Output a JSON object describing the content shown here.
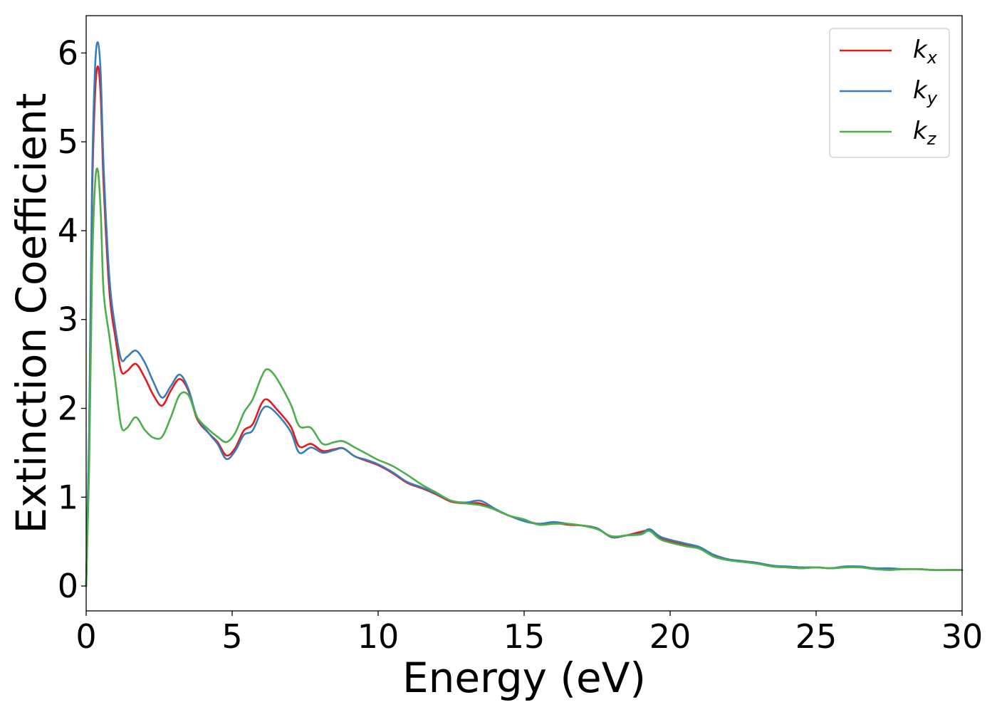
{
  "chart_data": {
    "type": "line",
    "title": "",
    "xlabel": "Energy (eV)",
    "ylabel": "Extinction Coefficient",
    "xlim": [
      0,
      30
    ],
    "ylim": [
      -0.28,
      6.42
    ],
    "xticks": [
      0,
      5,
      10,
      15,
      20,
      25,
      30
    ],
    "yticks": [
      0,
      1,
      2,
      3,
      4,
      5,
      6
    ],
    "grid": false,
    "legend_position": "top-right",
    "series": [
      {
        "name": "kx",
        "legend_base": "k",
        "legend_sub": "x",
        "color": "#e41a1c",
        "x": [
          0,
          0.1,
          0.2,
          0.3,
          0.4,
          0.5,
          0.6,
          0.8,
          1.0,
          1.2,
          1.4,
          1.7,
          2.0,
          2.3,
          2.6,
          2.9,
          3.2,
          3.5,
          3.8,
          4.2,
          4.5,
          4.8,
          5.1,
          5.4,
          5.7,
          6.0,
          6.2,
          6.5,
          7.0,
          7.3,
          7.7,
          8.1,
          8.5,
          8.8,
          9.2,
          9.6,
          10.0,
          10.5,
          11.0,
          11.5,
          12.0,
          12.5,
          13.0,
          13.5,
          14.0,
          14.5,
          15.0,
          15.5,
          16.0,
          16.5,
          17.0,
          17.5,
          18.0,
          18.5,
          19.0,
          19.3,
          19.7,
          20.5,
          21.0,
          21.5,
          22.0,
          22.5,
          23.0,
          23.5,
          24.0,
          24.5,
          25.0,
          25.5,
          26.0,
          26.5,
          27.0,
          27.5,
          28.0,
          28.5,
          29.0,
          29.5,
          30.0
        ],
        "y": [
          0.0,
          1.6,
          4.3,
          5.5,
          5.85,
          5.5,
          4.5,
          3.3,
          2.8,
          2.42,
          2.42,
          2.5,
          2.35,
          2.15,
          2.03,
          2.2,
          2.33,
          2.2,
          1.88,
          1.72,
          1.62,
          1.47,
          1.55,
          1.75,
          1.82,
          2.05,
          2.1,
          2.0,
          1.8,
          1.57,
          1.6,
          1.52,
          1.54,
          1.55,
          1.46,
          1.41,
          1.36,
          1.27,
          1.16,
          1.1,
          1.03,
          0.95,
          0.93,
          0.93,
          0.86,
          0.79,
          0.74,
          0.7,
          0.71,
          0.69,
          0.68,
          0.65,
          0.55,
          0.57,
          0.61,
          0.62,
          0.53,
          0.47,
          0.43,
          0.35,
          0.3,
          0.28,
          0.26,
          0.22,
          0.21,
          0.2,
          0.21,
          0.2,
          0.21,
          0.21,
          0.2,
          0.19,
          0.19,
          0.19,
          0.18,
          0.18,
          0.18
        ]
      },
      {
        "name": "ky",
        "legend_base": "k",
        "legend_sub": "y",
        "color": "#377eb8",
        "x": [
          0,
          0.1,
          0.2,
          0.3,
          0.4,
          0.5,
          0.6,
          0.8,
          1.0,
          1.2,
          1.4,
          1.7,
          2.0,
          2.3,
          2.6,
          2.9,
          3.2,
          3.5,
          3.8,
          4.2,
          4.5,
          4.8,
          5.1,
          5.4,
          5.7,
          6.0,
          6.2,
          6.5,
          7.0,
          7.3,
          7.7,
          8.1,
          8.5,
          8.8,
          9.2,
          9.6,
          10.0,
          10.5,
          11.0,
          11.5,
          12.0,
          12.5,
          13.0,
          13.5,
          14.0,
          14.5,
          15.0,
          15.5,
          16.0,
          16.5,
          17.0,
          17.5,
          18.0,
          18.5,
          19.0,
          19.3,
          19.7,
          20.5,
          21.0,
          21.5,
          22.0,
          22.5,
          23.0,
          23.5,
          24.0,
          24.5,
          25.0,
          25.5,
          26.0,
          26.5,
          27.0,
          27.5,
          28.0,
          28.5,
          29.0,
          29.5,
          30.0
        ],
        "y": [
          0.0,
          1.7,
          4.5,
          5.8,
          6.12,
          5.75,
          4.7,
          3.45,
          2.9,
          2.55,
          2.58,
          2.65,
          2.52,
          2.3,
          2.12,
          2.25,
          2.38,
          2.22,
          1.9,
          1.72,
          1.6,
          1.43,
          1.52,
          1.7,
          1.75,
          1.97,
          2.02,
          1.95,
          1.74,
          1.5,
          1.56,
          1.5,
          1.53,
          1.55,
          1.46,
          1.42,
          1.37,
          1.28,
          1.17,
          1.11,
          1.04,
          0.96,
          0.94,
          0.96,
          0.87,
          0.79,
          0.73,
          0.7,
          0.72,
          0.7,
          0.68,
          0.65,
          0.55,
          0.57,
          0.59,
          0.64,
          0.55,
          0.48,
          0.44,
          0.35,
          0.3,
          0.28,
          0.26,
          0.23,
          0.22,
          0.21,
          0.21,
          0.2,
          0.22,
          0.22,
          0.2,
          0.2,
          0.19,
          0.19,
          0.18,
          0.18,
          0.18
        ]
      },
      {
        "name": "kz",
        "legend_base": "k",
        "legend_sub": "z",
        "color": "#4daf4a",
        "x": [
          0,
          0.1,
          0.2,
          0.3,
          0.4,
          0.5,
          0.6,
          0.8,
          1.0,
          1.2,
          1.4,
          1.7,
          2.0,
          2.3,
          2.6,
          2.9,
          3.2,
          3.5,
          3.8,
          4.2,
          4.5,
          4.8,
          5.1,
          5.4,
          5.7,
          6.0,
          6.2,
          6.5,
          7.0,
          7.3,
          7.7,
          8.1,
          8.5,
          8.8,
          9.2,
          9.6,
          10.0,
          10.5,
          11.0,
          11.5,
          12.0,
          12.5,
          13.0,
          13.5,
          14.0,
          14.5,
          15.0,
          15.5,
          16.0,
          16.5,
          17.0,
          17.5,
          18.0,
          18.5,
          19.0,
          19.3,
          19.7,
          20.5,
          21.0,
          21.5,
          22.0,
          22.5,
          23.0,
          23.5,
          24.0,
          24.5,
          25.0,
          25.5,
          26.0,
          26.5,
          27.0,
          27.5,
          28.0,
          28.5,
          29.0,
          29.5,
          30.0
        ],
        "y": [
          0.0,
          1.3,
          3.5,
          4.5,
          4.68,
          4.2,
          3.3,
          2.8,
          2.3,
          1.8,
          1.78,
          1.9,
          1.76,
          1.67,
          1.68,
          1.9,
          2.15,
          2.15,
          1.9,
          1.76,
          1.68,
          1.62,
          1.72,
          1.95,
          2.1,
          2.35,
          2.44,
          2.35,
          2.05,
          1.8,
          1.78,
          1.6,
          1.62,
          1.63,
          1.56,
          1.49,
          1.42,
          1.35,
          1.25,
          1.14,
          1.05,
          0.96,
          0.93,
          0.91,
          0.86,
          0.79,
          0.75,
          0.69,
          0.7,
          0.7,
          0.68,
          0.64,
          0.56,
          0.57,
          0.58,
          0.62,
          0.52,
          0.45,
          0.42,
          0.33,
          0.29,
          0.27,
          0.25,
          0.22,
          0.21,
          0.2,
          0.21,
          0.2,
          0.21,
          0.21,
          0.19,
          0.18,
          0.19,
          0.19,
          0.18,
          0.18,
          0.18
        ]
      }
    ]
  }
}
